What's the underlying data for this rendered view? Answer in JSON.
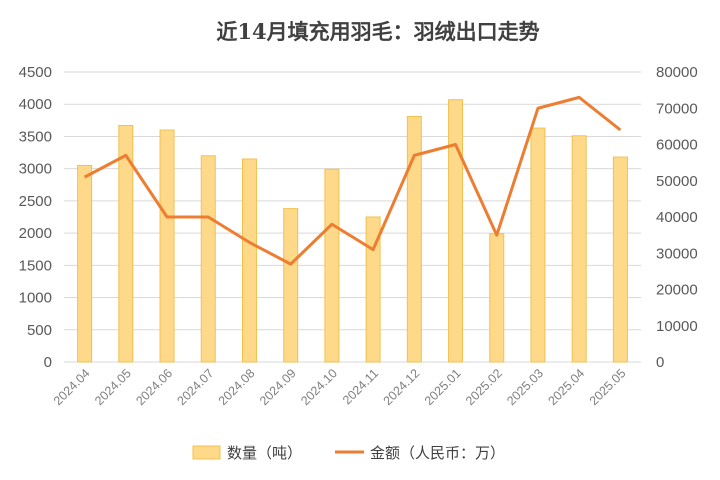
{
  "chart_data": {
    "type": "bar",
    "title": "近14月填充用羽毛：羽绒出口走势",
    "categories": [
      "2024.04",
      "2024.05",
      "2024.06",
      "2024.07",
      "2024.08",
      "2024.09",
      "2024.10",
      "2024.11",
      "2024.12",
      "2025.01",
      "2025.02",
      "2025.03",
      "2025.04",
      "2025.05"
    ],
    "series": [
      {
        "name": "数量（吨）",
        "type": "bar",
        "axis": "left",
        "color": "#FFD98A",
        "values": [
          3050,
          3670,
          3600,
          3200,
          3150,
          2380,
          2990,
          2250,
          3810,
          4070,
          1990,
          3630,
          3510,
          3180
        ]
      },
      {
        "name": "金额（人民币：万）",
        "type": "line",
        "axis": "right",
        "color": "#ED7D31",
        "values": [
          51000,
          57000,
          40000,
          40000,
          33000,
          27000,
          38000,
          31000,
          57000,
          60000,
          35000,
          70000,
          73000,
          64000
        ]
      }
    ],
    "yLeft": {
      "ylim": [
        0,
        4500
      ],
      "ticks": [
        "0",
        "500",
        "1000",
        "1500",
        "2000",
        "2500",
        "3000",
        "3500",
        "4000",
        "4500"
      ]
    },
    "yRight": {
      "ylim": [
        0,
        80000
      ],
      "ticks": [
        "0",
        "10000",
        "20000",
        "30000",
        "40000",
        "50000",
        "60000",
        "70000",
        "80000"
      ]
    },
    "grid": true,
    "legend": "bottom"
  }
}
